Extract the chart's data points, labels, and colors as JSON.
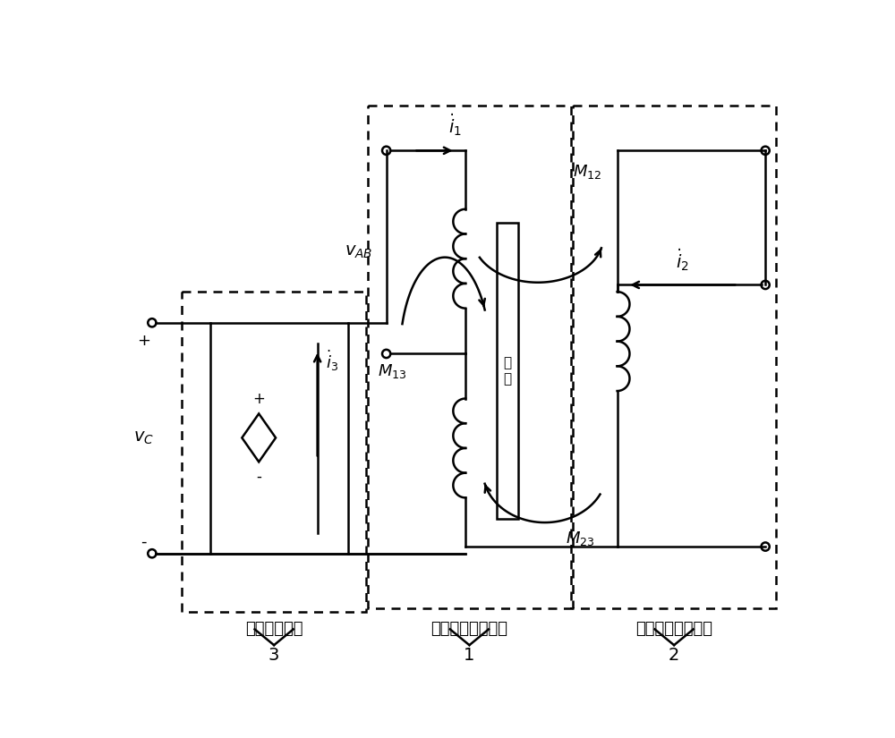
{
  "bg_color": "#ffffff",
  "line_color": "#000000",
  "fig_width": 10.0,
  "fig_height": 8.25,
  "dpi": 100,
  "box1_label": "非接触变压器原边",
  "box2_label": "非接触变压器副边",
  "box3_label": "流压转换电路",
  "num1": "1",
  "num2": "2",
  "num3": "3",
  "core_text": "气\n隙"
}
